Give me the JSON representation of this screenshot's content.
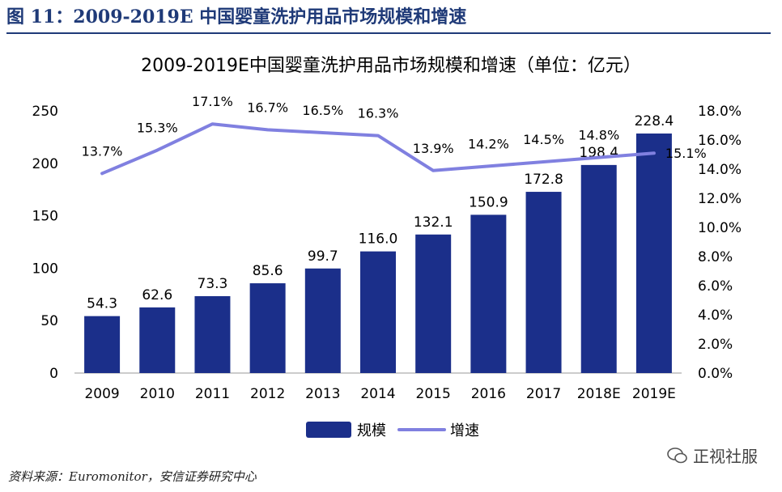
{
  "figure": {
    "header": "图 11：2009-2019E 中国婴童洗护用品市场规模和增速",
    "source": "资料来源：Euromonitor，安信证券研究中心",
    "watermark": "正视社服"
  },
  "colors": {
    "bar": "#1b2f8a",
    "line": "#8080e0",
    "header": "#1f3a78"
  },
  "chart_data": {
    "type": "bar",
    "title": "2009-2019E中国婴童洗护用品市场规模和增速（单位：亿元）",
    "categories": [
      "2009",
      "2010",
      "2011",
      "2012",
      "2013",
      "2014",
      "2015",
      "2016",
      "2017",
      "2018E",
      "2019E"
    ],
    "series": [
      {
        "name": "规模",
        "type": "bar",
        "axis": "left",
        "values": [
          54.3,
          62.6,
          73.3,
          85.6,
          99.7,
          116.0,
          132.1,
          150.9,
          172.8,
          198.4,
          228.4
        ],
        "labels": [
          "54.3",
          "62.6",
          "73.3",
          "85.6",
          "99.7",
          "116.0",
          "132.1",
          "150.9",
          "172.8",
          "198.4",
          "228.4"
        ]
      },
      {
        "name": "增速",
        "type": "line",
        "axis": "right",
        "values": [
          13.7,
          15.3,
          17.1,
          16.7,
          16.5,
          16.3,
          13.9,
          14.2,
          14.5,
          14.8,
          15.1
        ],
        "labels": [
          "13.7%",
          "15.3%",
          "17.1%",
          "16.7%",
          "16.5%",
          "16.3%",
          "13.9%",
          "14.2%",
          "14.5%",
          "14.8%",
          "15.1%"
        ]
      }
    ],
    "ylim_left": [
      0,
      250
    ],
    "yticks_left": [
      "0",
      "50",
      "100",
      "150",
      "200",
      "250"
    ],
    "ylim_right": [
      0,
      18
    ],
    "yticks_right": [
      "0.0%",
      "2.0%",
      "4.0%",
      "6.0%",
      "8.0%",
      "10.0%",
      "12.0%",
      "14.0%",
      "16.0%",
      "18.0%"
    ],
    "legend": [
      "规模",
      "增速"
    ],
    "legend_position": "bottom-center"
  }
}
